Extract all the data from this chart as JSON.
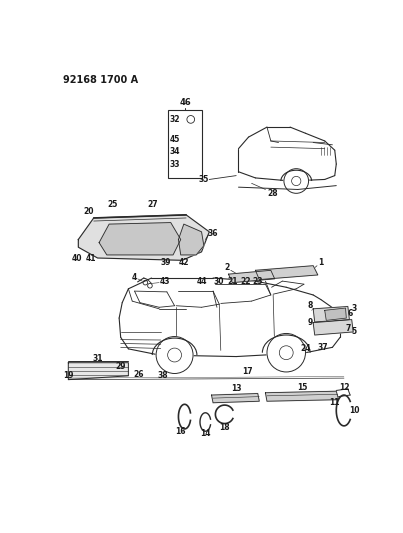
{
  "title": "92168 1700 A",
  "bg_color": "#ffffff",
  "lc": "#2a2a2a",
  "figsize": [
    4.03,
    5.33
  ],
  "dpi": 100
}
